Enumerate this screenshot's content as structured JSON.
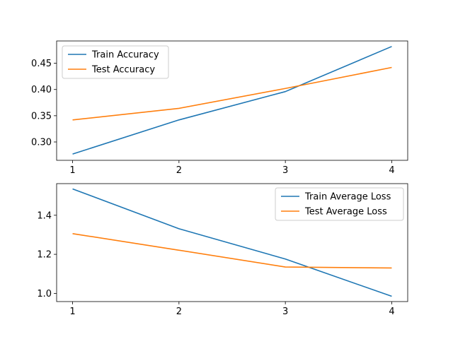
{
  "chart_data": [
    {
      "type": "line",
      "x": [
        1,
        2,
        3,
        4
      ],
      "xlim": [
        0.85,
        4.15
      ],
      "ylim": [
        0.265,
        0.4925
      ],
      "yticks": [
        0.3,
        0.35,
        0.4,
        0.45
      ],
      "ytick_labels": [
        "0.30",
        "0.35",
        "0.40",
        "0.45"
      ],
      "xtick_labels": [
        "1",
        "2",
        "3",
        "4"
      ],
      "legend": "top-left",
      "series": [
        {
          "name": "Train Accuracy",
          "values": [
            0.277,
            0.342,
            0.396,
            0.482
          ],
          "color": "#1f77b4"
        },
        {
          "name": "Test Accuracy",
          "values": [
            0.342,
            0.364,
            0.402,
            0.442
          ],
          "color": "#ff7f0e"
        }
      ]
    },
    {
      "type": "line",
      "x": [
        1,
        2,
        3,
        4
      ],
      "xlim": [
        0.85,
        4.15
      ],
      "ylim": [
        0.958,
        1.562
      ],
      "yticks": [
        1.0,
        1.2,
        1.4
      ],
      "ytick_labels": [
        "1.0",
        "1.2",
        "1.4"
      ],
      "xtick_labels": [
        "1",
        "2",
        "3",
        "4"
      ],
      "legend": "top-right",
      "series": [
        {
          "name": "Train Average Loss",
          "values": [
            1.535,
            1.331,
            1.176,
            0.985
          ],
          "color": "#1f77b4"
        },
        {
          "name": "Test Average Loss",
          "values": [
            1.306,
            1.221,
            1.135,
            1.13
          ],
          "color": "#ff7f0e"
        }
      ]
    }
  ]
}
